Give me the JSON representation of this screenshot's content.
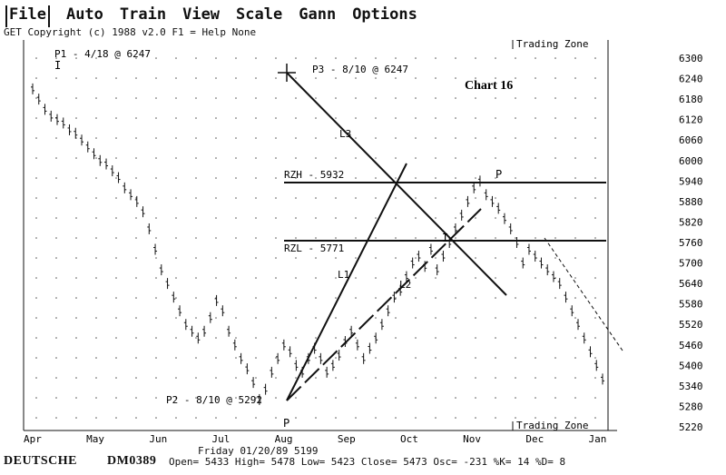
{
  "menu": {
    "items": [
      "File",
      "Auto",
      "Train",
      "View",
      "Scale",
      "Gann",
      "Options"
    ]
  },
  "header": {
    "copyright": "GET Copyright (c) 1988 v2.0 F1 = Help  None"
  },
  "chart_data": {
    "type": "line",
    "title": "Chart 16",
    "y_ticks": [
      6300,
      6240,
      6180,
      6120,
      6060,
      6000,
      5940,
      5880,
      5820,
      5760,
      5700,
      5640,
      5580,
      5520,
      5460,
      5400,
      5340,
      5280,
      5220
    ],
    "ylim": [
      5220,
      6300
    ],
    "x_labels": [
      "Apr",
      "May",
      "Jun",
      "Jul",
      "Aug",
      "Sep",
      "Oct",
      "Nov",
      "Dec",
      "Jan"
    ],
    "zones": {
      "top": "Trading Zone",
      "bottom": "Trading Zone"
    },
    "labels": {
      "p1": "P1 - 4/18 @ 6247",
      "p2": "P2 - 8/10 @ 5292",
      "p3": "P3 - 8/10 @ 6247",
      "rzh": "RZH - 5932",
      "rzl": "RZL - 5771",
      "l1": "L1",
      "l2": "L2",
      "l3": "L3"
    },
    "resistance_levels": [
      {
        "name": "RZH",
        "value": 5932
      },
      {
        "name": "RZL",
        "value": 5771
      }
    ],
    "pivot_points": [
      {
        "name": "P1",
        "date": "4/18",
        "value": 6247
      },
      {
        "name": "P2",
        "date": "8/10",
        "value": 5292
      },
      {
        "name": "P3",
        "date": "8/10",
        "value": 6247
      }
    ],
    "series": [
      {
        "values": [
          6210,
          6180,
          6150,
          6130,
          6120,
          6110,
          6090,
          6080,
          6060,
          6040,
          6020,
          6000,
          5990,
          5970,
          5950,
          5920,
          5900,
          5880,
          5850,
          5800,
          5740,
          5680,
          5640,
          5600,
          5560,
          5520,
          5500,
          5480,
          5500,
          5540,
          5590,
          5560,
          5500,
          5460,
          5420,
          5390,
          5350,
          5300,
          5330,
          5380,
          5420,
          5460,
          5440,
          5400,
          5380,
          5420,
          5450,
          5420,
          5380,
          5400,
          5430,
          5470,
          5500,
          5460,
          5420,
          5450,
          5480,
          5520,
          5560,
          5600,
          5620,
          5660,
          5700,
          5720,
          5690,
          5740,
          5680,
          5720,
          5760,
          5800,
          5840,
          5880,
          5920,
          5940,
          5900,
          5880,
          5860,
          5830,
          5800,
          5760,
          5700,
          5740,
          5720,
          5700,
          5680,
          5660,
          5640,
          5600,
          5560,
          5520,
          5480,
          5440,
          5400,
          5360
        ]
      }
    ]
  },
  "footer": {
    "name": "DEUTSCHE",
    "symbol": "DM0389",
    "date_line": "Friday 01/20/89  5199",
    "stats": "Open= 5433 High= 5478 Low= 5423 Close= 5473 Osc= -231 %K= 14 %D=  8"
  }
}
